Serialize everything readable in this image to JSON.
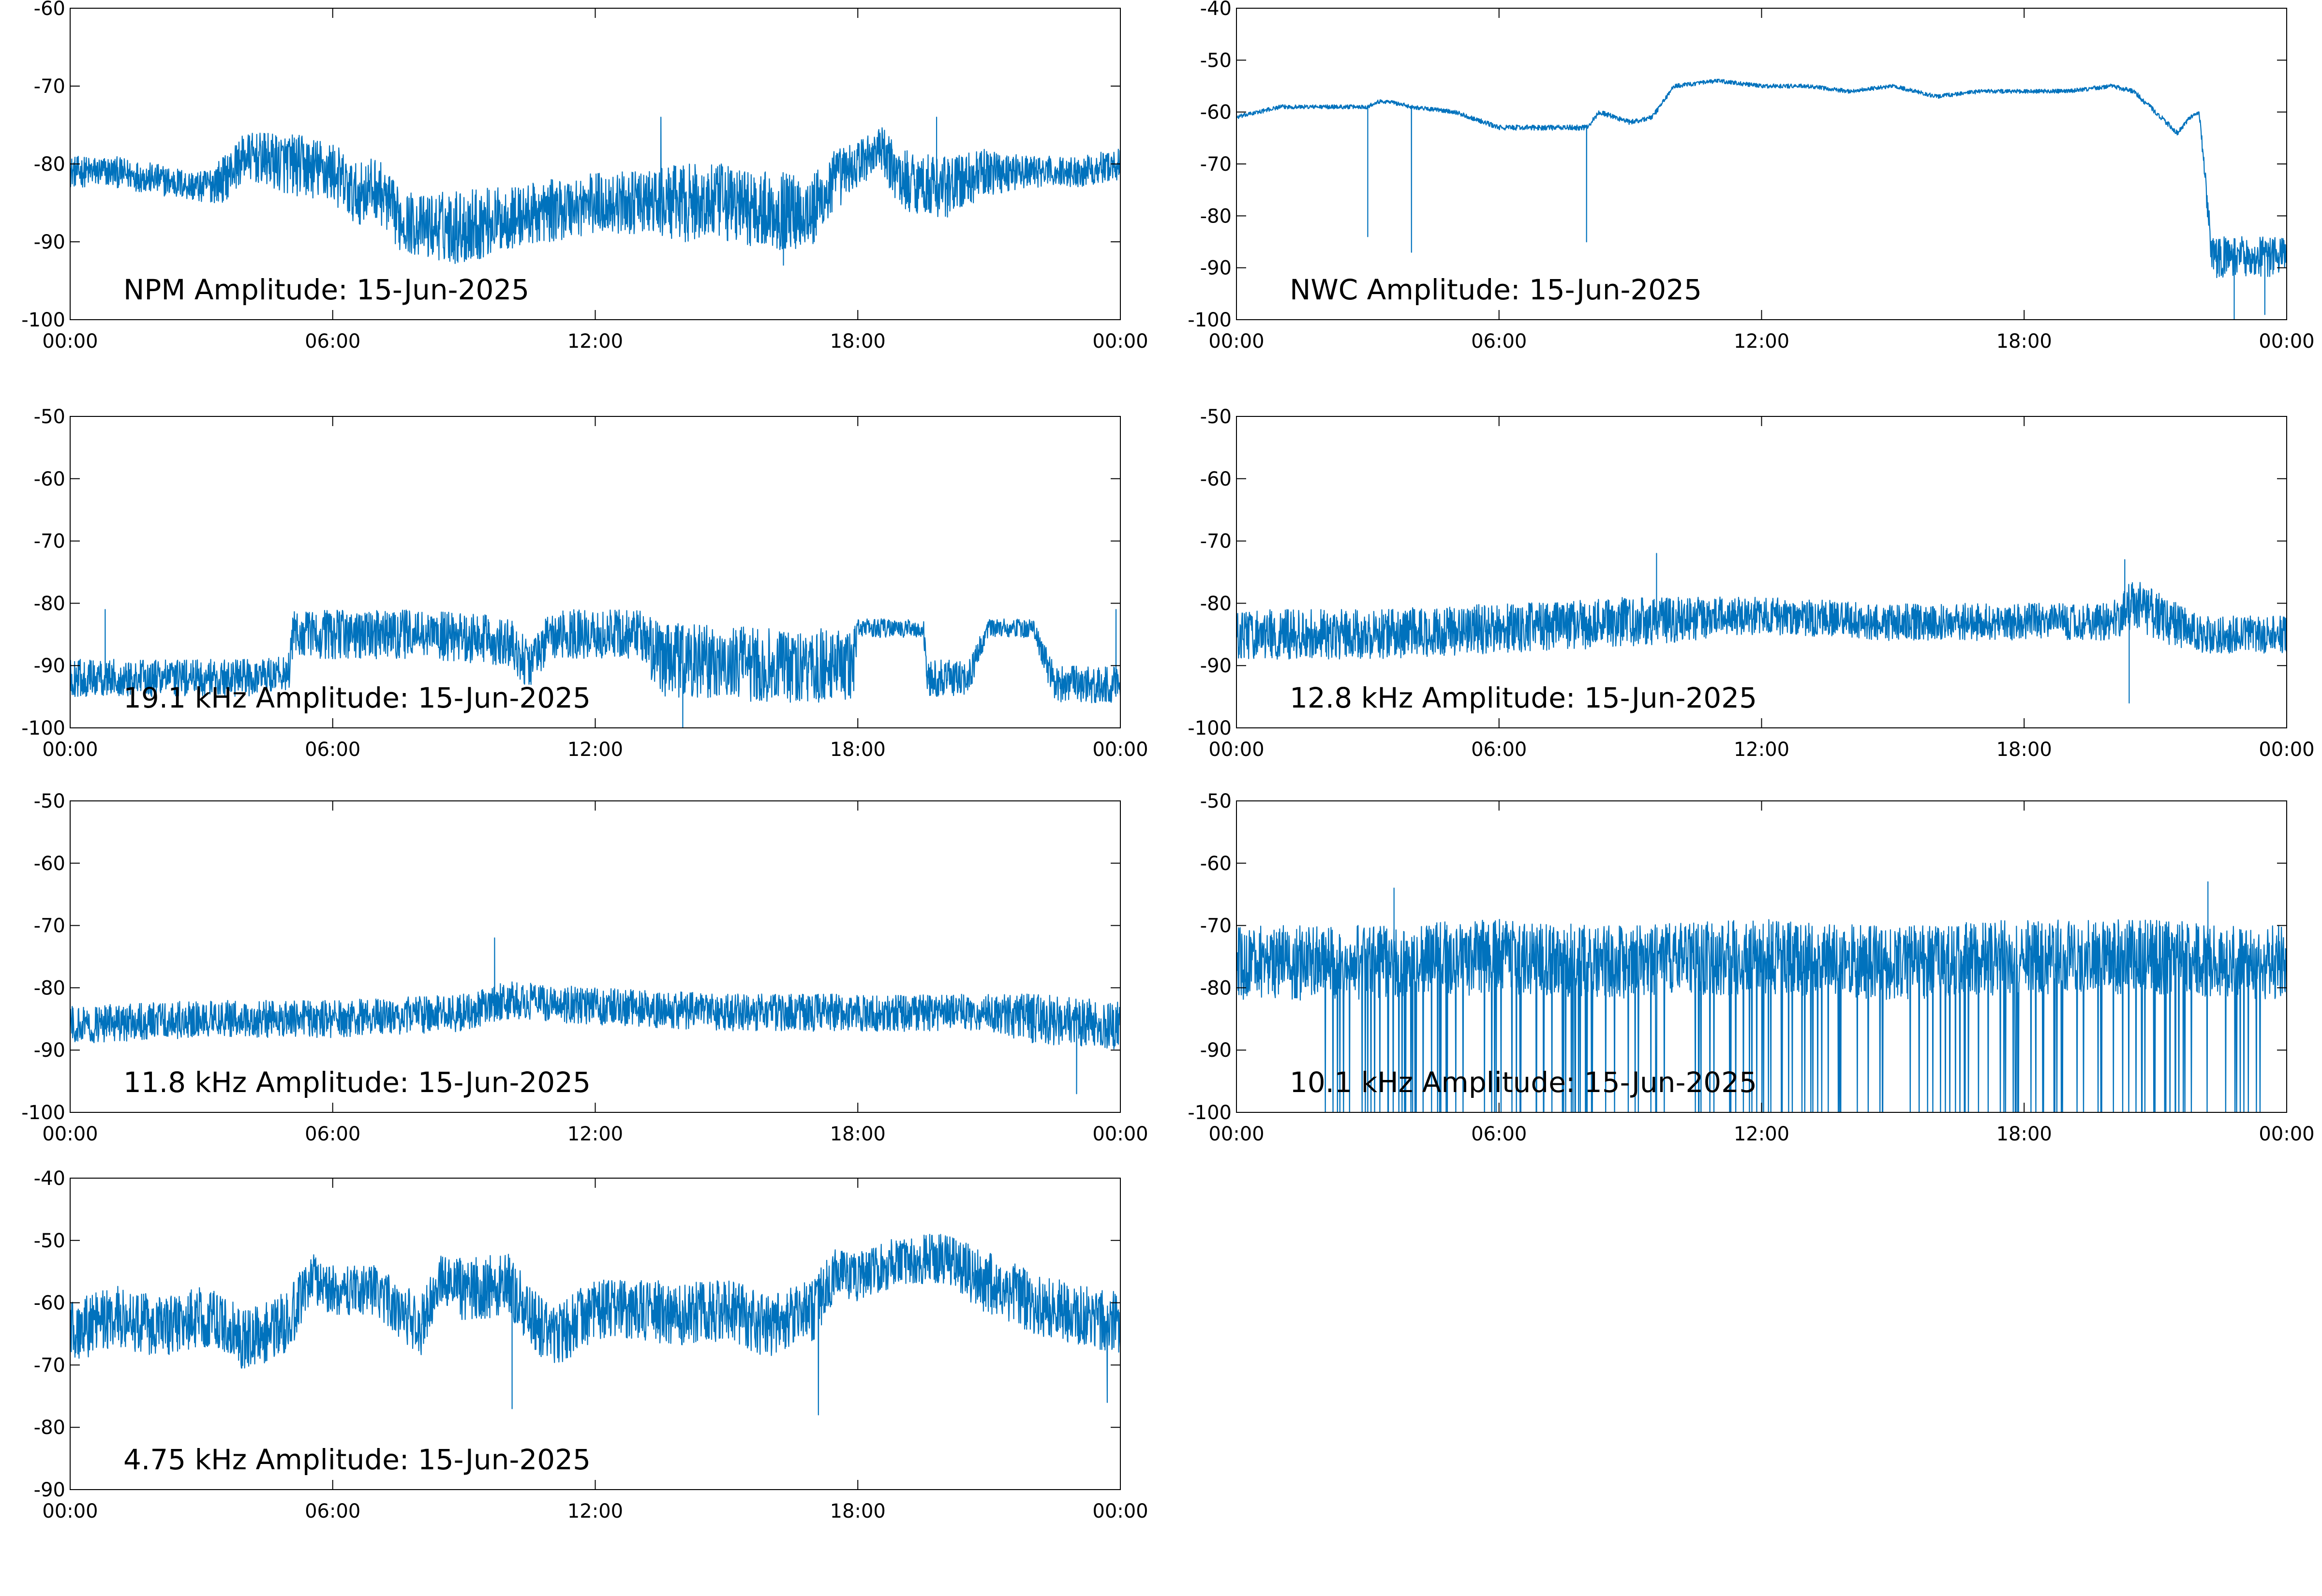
{
  "figure": {
    "background": "#ffffff",
    "line_color": "#0072bd",
    "axis_color": "#000000"
  },
  "chart_data": [
    {
      "type": "line",
      "title": "NPM Amplitude: 15-Jun-2025",
      "xlim": [
        "00:00",
        "24:00"
      ],
      "ylim": [
        -100,
        -60
      ],
      "x_ticks": [
        "00:00",
        "06:00",
        "12:00",
        "18:00",
        "00:00"
      ],
      "y_ticks": [
        -60,
        -70,
        -80,
        -90,
        -100
      ],
      "grid": false,
      "series_profile": {
        "x_hours": [
          0,
          1,
          2,
          3,
          3.5,
          4,
          5,
          6,
          6.5,
          7,
          7.5,
          8,
          9,
          10,
          11,
          12,
          13,
          14,
          15,
          16,
          17,
          17.5,
          18,
          18.5,
          19,
          20,
          21,
          22,
          23,
          24
        ],
        "center": [
          -81,
          -81,
          -82,
          -83,
          -82,
          -79,
          -80,
          -81,
          -84,
          -83,
          -87,
          -88,
          -88,
          -87,
          -86,
          -85,
          -85,
          -85,
          -85,
          -86,
          -86,
          -82,
          -80,
          -78,
          -82,
          -83,
          -81,
          -81,
          -81,
          -80
        ],
        "spread": [
          2,
          2,
          2,
          2,
          3,
          3,
          4,
          4,
          4,
          4,
          4,
          4,
          5,
          4,
          4,
          4,
          4,
          5,
          5,
          5,
          5,
          4,
          3,
          3,
          4,
          4,
          3,
          2,
          2,
          2
        ]
      },
      "spikes": [
        {
          "x_hours": 13.5,
          "y": -74
        },
        {
          "x_hours": 19.8,
          "y": -74
        },
        {
          "x_hours": 16.3,
          "y": -93
        }
      ]
    },
    {
      "type": "line",
      "title": "NWC Amplitude: 15-Jun-2025",
      "xlim": [
        "00:00",
        "24:00"
      ],
      "ylim": [
        -100,
        -40
      ],
      "x_ticks": [
        "00:00",
        "06:00",
        "12:00",
        "18:00",
        "00:00"
      ],
      "y_ticks": [
        -40,
        -50,
        -60,
        -70,
        -80,
        -90,
        -100
      ],
      "grid": false,
      "series_profile": {
        "x_hours": [
          0,
          1,
          2,
          3,
          3.2,
          3.5,
          4,
          5,
          6,
          7,
          8,
          8.3,
          9,
          9.5,
          10,
          11,
          12,
          13,
          14,
          15,
          16,
          17,
          18,
          19,
          20,
          20.5,
          21,
          21.5,
          21.8,
          22,
          22.3,
          23,
          24
        ],
        "center": [
          -61,
          -59,
          -59,
          -59,
          -58,
          -58,
          -59,
          -60,
          -63,
          -63,
          -63,
          -60,
          -62,
          -61,
          -55,
          -54,
          -55,
          -55,
          -56,
          -55,
          -57,
          -56,
          -56,
          -56,
          -55,
          -56,
          -60,
          -64,
          -61,
          -60,
          -88,
          -88,
          -88
        ],
        "spread": [
          0.4,
          0.4,
          0.4,
          0.4,
          0.4,
          0.4,
          0.4,
          0.4,
          0.5,
          0.5,
          0.5,
          0.5,
          0.5,
          0.5,
          0.4,
          0.4,
          0.4,
          0.4,
          0.4,
          0.4,
          0.4,
          0.4,
          0.4,
          0.4,
          0.4,
          0.5,
          0.5,
          0.5,
          0.5,
          0.5,
          4,
          4,
          4
        ]
      },
      "spikes": [
        {
          "x_hours": 3.0,
          "y": -84
        },
        {
          "x_hours": 4.0,
          "y": -87
        },
        {
          "x_hours": 8.0,
          "y": -85
        },
        {
          "x_hours": 22.8,
          "y": -100
        },
        {
          "x_hours": 23.5,
          "y": -99
        }
      ]
    },
    {
      "type": "line",
      "title": "19.1 kHz Amplitude: 15-Jun-2025",
      "xlim": [
        "00:00",
        "24:00"
      ],
      "ylim": [
        -100,
        -50
      ],
      "x_ticks": [
        "00:00",
        "06:00",
        "12:00",
        "18:00",
        "00:00"
      ],
      "y_ticks": [
        -50,
        -60,
        -70,
        -80,
        -90,
        -100
      ],
      "grid": false,
      "series_profile": {
        "x_hours": [
          0,
          2,
          4,
          5,
          5.1,
          8,
          10,
          10.5,
          11,
          13,
          13.5,
          16,
          17.9,
          18,
          19.5,
          19.6,
          20.5,
          21,
          22,
          22.5,
          24
        ],
        "center": [
          -92,
          -92,
          -92,
          -91,
          -85,
          -85,
          -86,
          -90,
          -85,
          -85,
          -89,
          -90,
          -90,
          -84,
          -84,
          -92,
          -92,
          -84,
          -84,
          -93,
          -93
        ],
        "spread": [
          3,
          3,
          3,
          3,
          4,
          4,
          4,
          4,
          4,
          4,
          6,
          6,
          6,
          1.5,
          1.5,
          3,
          3,
          1.5,
          1.5,
          3,
          3
        ]
      },
      "spikes": [
        {
          "x_hours": 0.8,
          "y": -81
        },
        {
          "x_hours": 14.0,
          "y": -100
        },
        {
          "x_hours": 23.9,
          "y": -81
        }
      ]
    },
    {
      "type": "line",
      "title": "12.8 kHz Amplitude: 15-Jun-2025",
      "xlim": [
        "00:00",
        "24:00"
      ],
      "ylim": [
        -100,
        -50
      ],
      "x_ticks": [
        "00:00",
        "06:00",
        "12:00",
        "18:00",
        "00:00"
      ],
      "y_ticks": [
        -50,
        -60,
        -70,
        -80,
        -90,
        -100
      ],
      "grid": false,
      "series_profile": {
        "x_hours": [
          0,
          3,
          6,
          9,
          12,
          15,
          18,
          20,
          20.5,
          21,
          22,
          24
        ],
        "center": [
          -85,
          -85,
          -84,
          -83,
          -82,
          -83,
          -83,
          -83,
          -80,
          -82,
          -85,
          -85
        ],
        "spread": [
          4,
          4,
          4,
          4,
          3,
          3,
          3,
          3,
          4,
          4,
          3,
          3
        ]
      },
      "spikes": [
        {
          "x_hours": 9.6,
          "y": -72
        },
        {
          "x_hours": 20.3,
          "y": -73
        },
        {
          "x_hours": 20.4,
          "y": -96
        }
      ]
    },
    {
      "type": "line",
      "title": "11.8 kHz Amplitude: 15-Jun-2025",
      "xlim": [
        "00:00",
        "24:00"
      ],
      "ylim": [
        -100,
        -50
      ],
      "x_ticks": [
        "00:00",
        "06:00",
        "12:00",
        "18:00",
        "00:00"
      ],
      "y_ticks": [
        -50,
        -60,
        -70,
        -80,
        -90,
        -100
      ],
      "grid": false,
      "series_profile": {
        "x_hours": [
          0,
          3,
          6,
          9,
          10,
          12,
          15,
          18,
          21,
          22,
          24
        ],
        "center": [
          -86,
          -85,
          -85,
          -84,
          -82,
          -83,
          -84,
          -84,
          -84,
          -85,
          -86
        ],
        "spread": [
          3,
          3,
          3,
          3,
          3,
          3,
          3,
          3,
          3,
          4,
          4
        ]
      },
      "spikes": [
        {
          "x_hours": 9.7,
          "y": -72
        },
        {
          "x_hours": 23.0,
          "y": -97
        }
      ]
    },
    {
      "type": "line",
      "title": "10.1 kHz Amplitude: 15-Jun-2025",
      "xlim": [
        "00:00",
        "24:00"
      ],
      "ylim": [
        -100,
        -50
      ],
      "x_ticks": [
        "00:00",
        "06:00",
        "12:00",
        "18:00",
        "00:00"
      ],
      "y_ticks": [
        -50,
        -60,
        -70,
        -80,
        -90,
        -100
      ],
      "grid": false,
      "series_profile": {
        "x_hours": [
          0,
          3,
          6,
          9,
          12,
          15,
          18,
          21,
          24
        ],
        "center": [
          -76,
          -76,
          -75,
          -76,
          -75,
          -76,
          -75,
          -75,
          -76
        ],
        "spread": [
          6,
          6,
          6,
          6,
          6,
          6,
          6,
          6,
          6
        ]
      },
      "dropouts_to_ymin_between_hours": [
        2.0,
        23.5
      ],
      "spikes": [
        {
          "x_hours": 3.6,
          "y": -64
        },
        {
          "x_hours": 22.2,
          "y": -63
        }
      ]
    },
    {
      "type": "line",
      "title": "4.75 kHz Amplitude: 15-Jun-2025",
      "xlim": [
        "00:00",
        "24:00"
      ],
      "ylim": [
        -90,
        -40
      ],
      "x_ticks": [
        "00:00",
        "06:00",
        "12:00",
        "18:00",
        "00:00"
      ],
      "y_ticks": [
        -40,
        -50,
        -60,
        -70,
        -80,
        -90
      ],
      "grid": false,
      "series_profile": {
        "x_hours": [
          0,
          1,
          2,
          3,
          4,
          5,
          5.5,
          6,
          7,
          8,
          8.5,
          9,
          10,
          11,
          12,
          13,
          14,
          15,
          16,
          17,
          17.5,
          18,
          19,
          20,
          21,
          22,
          23,
          24
        ],
        "center": [
          -65,
          -62,
          -64,
          -62,
          -66,
          -63,
          -56,
          -58,
          -58,
          -64,
          -56,
          -58,
          -57,
          -66,
          -61,
          -61,
          -62,
          -61,
          -64,
          -61,
          -55,
          -56,
          -53,
          -53,
          -57,
          -60,
          -62,
          -63
        ],
        "spread": [
          5,
          5,
          5,
          5,
          5,
          5,
          4,
          4,
          4,
          5,
          4,
          5,
          5,
          5,
          5,
          5,
          5,
          5,
          5,
          5,
          4,
          4,
          4,
          4,
          5,
          5,
          5,
          5
        ]
      },
      "spikes": [
        {
          "x_hours": 10.1,
          "y": -77
        },
        {
          "x_hours": 17.1,
          "y": -78
        },
        {
          "x_hours": 23.7,
          "y": -76
        }
      ]
    }
  ]
}
